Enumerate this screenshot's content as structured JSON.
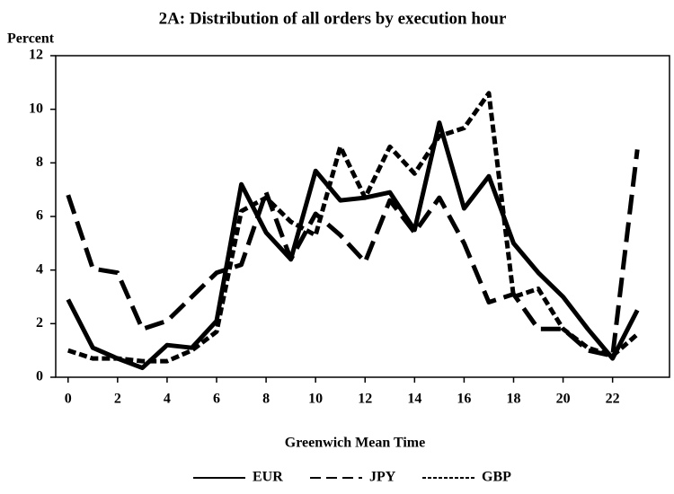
{
  "chart_data": {
    "type": "line",
    "title": "2A:  Distribution of all orders by execution hour",
    "ylabel": "Percent",
    "xlabel": "Greenwich Mean Time",
    "x": [
      0,
      1,
      2,
      3,
      4,
      5,
      6,
      7,
      8,
      9,
      10,
      11,
      12,
      13,
      14,
      15,
      16,
      17,
      18,
      19,
      20,
      21,
      22,
      23
    ],
    "series": [
      {
        "name": "EUR",
        "color": "#000000",
        "dash": "solid",
        "values": [
          2.9,
          1.1,
          0.7,
          0.35,
          1.2,
          1.1,
          2.1,
          7.2,
          5.4,
          4.4,
          7.7,
          6.6,
          6.7,
          6.9,
          5.5,
          9.5,
          6.3,
          7.5,
          5.0,
          3.9,
          3.0,
          1.8,
          0.7,
          2.5
        ]
      },
      {
        "name": "JPY",
        "color": "#000000",
        "dash": "long-dash",
        "values": [
          6.8,
          4.05,
          3.9,
          1.8,
          2.1,
          3.0,
          3.9,
          4.2,
          6.9,
          4.4,
          6.1,
          5.3,
          4.3,
          6.6,
          5.4,
          6.7,
          5.0,
          2.8,
          3.1,
          1.8,
          1.8,
          1.0,
          0.8,
          8.5
        ]
      },
      {
        "name": "GBP",
        "color": "#000000",
        "dash": "dash",
        "values": [
          1.0,
          0.7,
          0.7,
          0.6,
          0.6,
          1.0,
          1.7,
          6.2,
          6.7,
          5.8,
          5.3,
          8.6,
          6.7,
          8.6,
          7.6,
          9.0,
          9.3,
          10.6,
          3.0,
          3.3,
          1.8,
          1.1,
          0.8,
          1.6
        ]
      }
    ],
    "xlim": [
      -0.5,
      24.3
    ],
    "xticks": [
      0,
      2,
      4,
      6,
      8,
      10,
      12,
      14,
      16,
      18,
      20,
      22
    ],
    "ylim": [
      0,
      12
    ],
    "yticks": [
      0,
      2,
      4,
      6,
      8,
      10,
      12
    ],
    "grid": false,
    "legend": "bottom"
  }
}
